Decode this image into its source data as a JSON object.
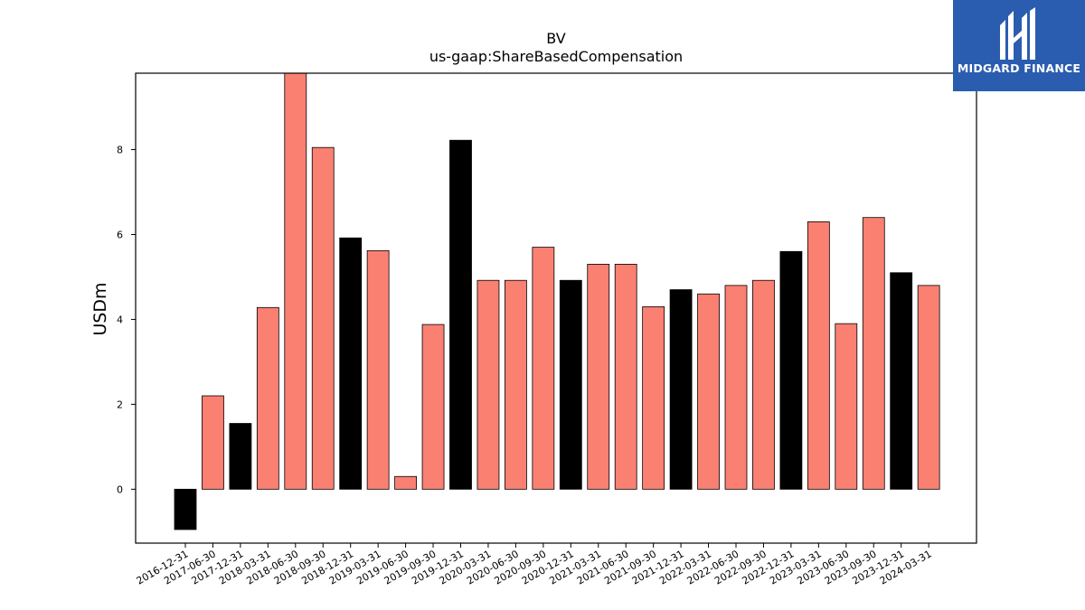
{
  "chart_data": {
    "type": "bar",
    "title": "BV",
    "subtitle": "us-gaap:ShareBasedCompensation",
    "xlabel": "",
    "ylabel": "USDm",
    "ylim": [
      -1.27,
      9.8
    ],
    "yticks": [
      0,
      2,
      4,
      6,
      8
    ],
    "grid": false,
    "colors": {
      "quarter": "#fa8072",
      "year_end": "#000000",
      "edge": "#000000"
    },
    "categories": [
      "2016-12-31",
      "2017-06-30",
      "2017-12-31",
      "2018-03-31",
      "2018-06-30",
      "2018-09-30",
      "2018-12-31",
      "2019-03-31",
      "2019-06-30",
      "2019-09-30",
      "2019-12-31",
      "2020-03-31",
      "2020-06-30",
      "2020-09-30",
      "2020-12-31",
      "2021-03-31",
      "2021-06-30",
      "2021-09-30",
      "2021-12-31",
      "2022-03-31",
      "2022-06-30",
      "2022-09-30",
      "2022-12-31",
      "2023-03-31",
      "2023-06-30",
      "2023-09-30",
      "2023-12-31",
      "2024-03-31"
    ],
    "values": [
      -0.95,
      2.2,
      1.55,
      4.28,
      9.9,
      8.05,
      5.92,
      5.62,
      0.3,
      3.88,
      8.22,
      4.92,
      4.92,
      5.7,
      4.92,
      5.3,
      5.3,
      4.3,
      4.7,
      4.6,
      4.8,
      4.92,
      5.6,
      6.3,
      3.9,
      6.4,
      5.1,
      4.8
    ]
  },
  "logo": {
    "text": "MIDGARD FINANCE",
    "icon": "midgard-logo-icon",
    "background": "#2a5db0"
  }
}
